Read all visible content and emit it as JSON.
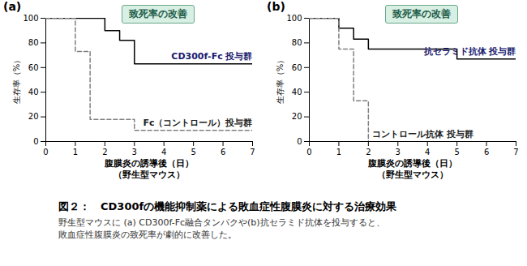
{
  "chart_data": [
    {
      "type": "step",
      "title": "(a)",
      "annotation": "致死率の改善",
      "x_label": [
        "腹膜炎の誘導後（日）",
        "（野生型マウス）"
      ],
      "y_label": "生存率（%）",
      "xlim": [
        0,
        7
      ],
      "xticks": [
        0,
        1,
        2,
        3,
        4,
        5,
        6,
        7
      ],
      "ylim": [
        0,
        100
      ],
      "yticks": [
        0,
        20,
        40,
        60,
        80,
        100
      ],
      "grid": false,
      "series": [
        {
          "name": "CD300f-Fc 投与群",
          "color": "#000000",
          "line_style": "solid",
          "x": [
            0,
            2,
            2.5,
            3,
            7
          ],
          "values": [
            100,
            90,
            82,
            63,
            63
          ]
        },
        {
          "name": "Fc（コントロール）投与群",
          "color": "#808080",
          "line_style": "dashed",
          "x": [
            0,
            1,
            1.5,
            3,
            7
          ],
          "values": [
            100,
            73,
            18,
            9,
            9
          ]
        }
      ]
    },
    {
      "type": "step",
      "title": "(b)",
      "annotation": "致死率の改善",
      "x_label": [
        "腹膜炎の誘導後（日）",
        "（野生型マウス）"
      ],
      "y_label": "生存率（%）",
      "xlim": [
        0,
        7
      ],
      "xticks": [
        0,
        1,
        2,
        3,
        4,
        5,
        6,
        7
      ],
      "ylim": [
        0,
        100
      ],
      "yticks": [
        0,
        20,
        40,
        60,
        80,
        100
      ],
      "grid": false,
      "series": [
        {
          "name": "抗セラミド抗体 投与群",
          "color": "#000000",
          "line_style": "solid",
          "x": [
            0,
            1,
            1.5,
            2,
            5,
            7
          ],
          "values": [
            100,
            92,
            83,
            75,
            67,
            67
          ]
        },
        {
          "name": "コントロール抗体 投与群",
          "color": "#808080",
          "line_style": "dashed",
          "x": [
            0,
            1,
            1.5,
            2
          ],
          "values": [
            100,
            75,
            33,
            0
          ]
        }
      ]
    }
  ],
  "caption": {
    "title": "図２：　CD300fの機能抑制薬による敗血症性腹膜炎に対する治療効果",
    "lines": [
      "野生型マウスに (a) CD300f-Fc融合タンパクや(b)抗セラミド抗体を投与すると、",
      "敗血症性腹膜炎の致死率が劇的に改善した。"
    ]
  }
}
